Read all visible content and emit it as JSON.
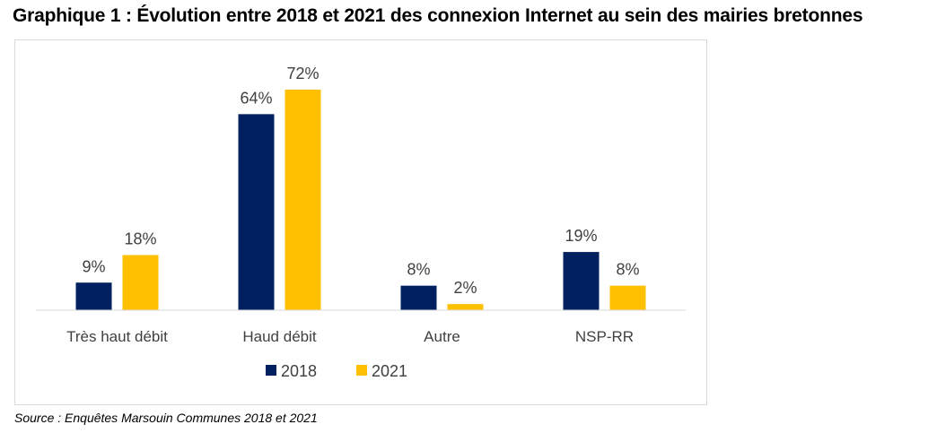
{
  "title": "Graphique 1 : Évolution entre 2018 et 2021 des connexion Internet au sein des mairies bretonnes",
  "source": "Source : Enquêtes Marsouin Communes 2018 et 2021",
  "colors": {
    "s2018": "#002060",
    "s2021": "#ffc000"
  },
  "chart_data": {
    "type": "bar",
    "categories": [
      "Très haut débit",
      "Haud débit",
      "Autre",
      "NSP-RR"
    ],
    "series": [
      {
        "name": "2018",
        "values": [
          9,
          64,
          8,
          19
        ],
        "labels": [
          "9%",
          "64%",
          "8%",
          "19%"
        ],
        "color": "#002060"
      },
      {
        "name": "2021",
        "values": [
          18,
          72,
          2,
          8
        ],
        "labels": [
          "18%",
          "72%",
          "2%",
          "8%"
        ],
        "color": "#ffc000"
      }
    ],
    "ylim": [
      0,
      72
    ],
    "legend": "bottom",
    "grid": false
  }
}
